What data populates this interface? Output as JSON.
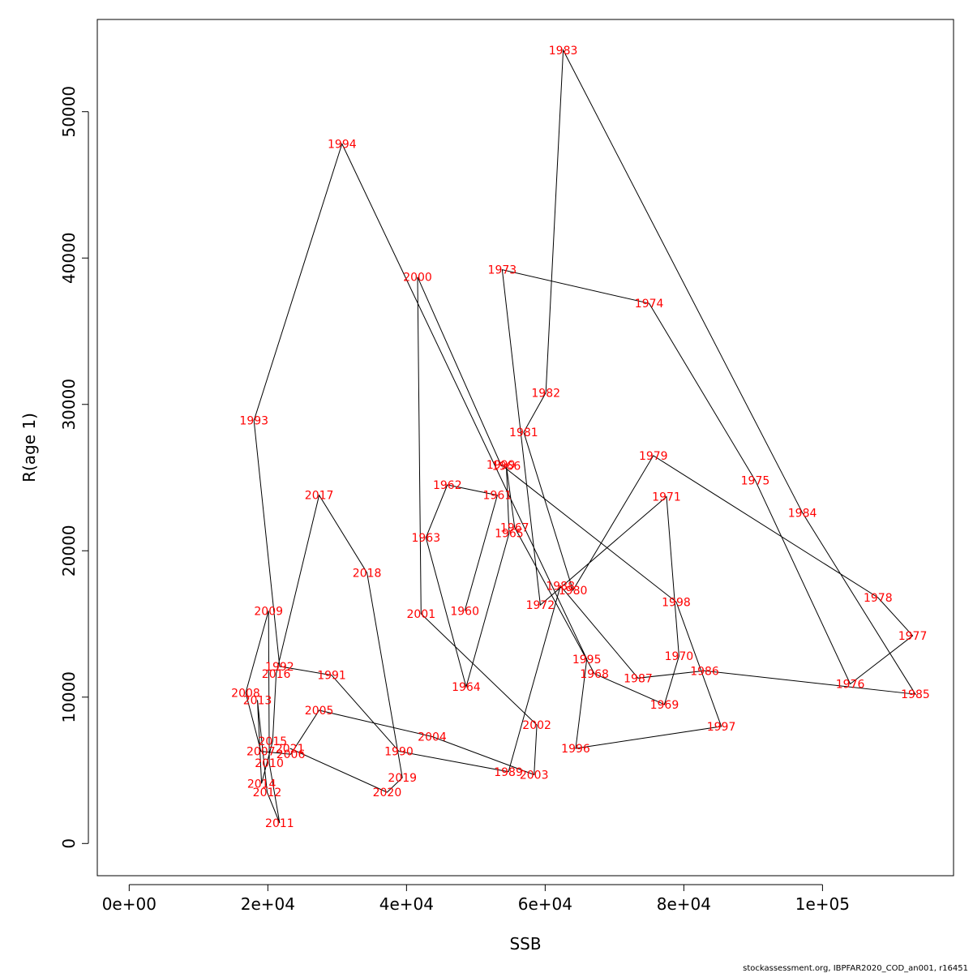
{
  "chart_data": {
    "type": "line",
    "title": "",
    "xlabel": "SSB",
    "ylabel": "R(age 1)",
    "xlim": [
      -4600,
      118900
    ],
    "ylim": [
      -2200,
      56300
    ],
    "grid": false,
    "x_ticks": [
      0,
      20000,
      40000,
      60000,
      80000,
      100000
    ],
    "x_tick_labels": [
      "0e+00",
      "2e+04",
      "4e+04",
      "6e+04",
      "8e+04",
      "1e+05"
    ],
    "y_ticks": [
      0,
      10000,
      20000,
      30000,
      40000,
      50000
    ],
    "y_tick_labels": [
      "0",
      "10000",
      "20000",
      "30000",
      "40000",
      "50000"
    ],
    "line_color": "#000000",
    "label_color": "#ff0000",
    "points": [
      {
        "year": "1960",
        "x": 48400,
        "y": 15900
      },
      {
        "year": "1961",
        "x": 53100,
        "y": 23800
      },
      {
        "year": "1962",
        "x": 45900,
        "y": 24500
      },
      {
        "year": "1963",
        "x": 42800,
        "y": 20900
      },
      {
        "year": "1964",
        "x": 48600,
        "y": 10700
      },
      {
        "year": "1965",
        "x": 54800,
        "y": 21200
      },
      {
        "year": "1966",
        "x": 54400,
        "y": 25800
      },
      {
        "year": "1967",
        "x": 55600,
        "y": 21600
      },
      {
        "year": "1968",
        "x": 67100,
        "y": 11600
      },
      {
        "year": "1969",
        "x": 77200,
        "y": 9500
      },
      {
        "year": "1970",
        "x": 79300,
        "y": 12800
      },
      {
        "year": "1971",
        "x": 77500,
        "y": 23700
      },
      {
        "year": "1972",
        "x": 59300,
        "y": 16300
      },
      {
        "year": "1973",
        "x": 53800,
        "y": 39200
      },
      {
        "year": "1974",
        "x": 75000,
        "y": 36900
      },
      {
        "year": "1975",
        "x": 90300,
        "y": 24800
      },
      {
        "year": "1976",
        "x": 104000,
        "y": 10900
      },
      {
        "year": "1977",
        "x": 113000,
        "y": 14200
      },
      {
        "year": "1978",
        "x": 108000,
        "y": 16800
      },
      {
        "year": "1979",
        "x": 75600,
        "y": 26500
      },
      {
        "year": "1980",
        "x": 64000,
        "y": 17300
      },
      {
        "year": "1981",
        "x": 56900,
        "y": 28100
      },
      {
        "year": "1982",
        "x": 60100,
        "y": 30800
      },
      {
        "year": "1983",
        "x": 62600,
        "y": 54200
      },
      {
        "year": "1984",
        "x": 97100,
        "y": 22600
      },
      {
        "year": "1985",
        "x": 113400,
        "y": 10200
      },
      {
        "year": "1986",
        "x": 83000,
        "y": 11800
      },
      {
        "year": "1987",
        "x": 73400,
        "y": 11300
      },
      {
        "year": "1988",
        "x": 62200,
        "y": 17600
      },
      {
        "year": "1989",
        "x": 54700,
        "y": 4900
      },
      {
        "year": "1990",
        "x": 38900,
        "y": 6300
      },
      {
        "year": "1991",
        "x": 29200,
        "y": 11500
      },
      {
        "year": "1992",
        "x": 21700,
        "y": 12100
      },
      {
        "year": "1993",
        "x": 18000,
        "y": 28900
      },
      {
        "year": "1994",
        "x": 30700,
        "y": 47800
      },
      {
        "year": "1995",
        "x": 66000,
        "y": 12600
      },
      {
        "year": "1996",
        "x": 64400,
        "y": 6500
      },
      {
        "year": "1997",
        "x": 85400,
        "y": 8000
      },
      {
        "year": "1998",
        "x": 78900,
        "y": 16500
      },
      {
        "year": "1999",
        "x": 53600,
        "y": 25900
      },
      {
        "year": "2000",
        "x": 41600,
        "y": 38700
      },
      {
        "year": "2001",
        "x": 42100,
        "y": 15700
      },
      {
        "year": "2002",
        "x": 58800,
        "y": 8100
      },
      {
        "year": "2003",
        "x": 58400,
        "y": 4700
      },
      {
        "year": "2004",
        "x": 43700,
        "y": 7300
      },
      {
        "year": "2005",
        "x": 27400,
        "y": 9100
      },
      {
        "year": "2006",
        "x": 23300,
        "y": 6100
      },
      {
        "year": "2007",
        "x": 19000,
        "y": 6300
      },
      {
        "year": "2008",
        "x": 16800,
        "y": 10300
      },
      {
        "year": "2009",
        "x": 20100,
        "y": 15900
      },
      {
        "year": "2010",
        "x": 20200,
        "y": 5500
      },
      {
        "year": "2011",
        "x": 21700,
        "y": 1400
      },
      {
        "year": "2012",
        "x": 19900,
        "y": 3500
      },
      {
        "year": "2013",
        "x": 18500,
        "y": 9800
      },
      {
        "year": "2014",
        "x": 19100,
        "y": 4100
      },
      {
        "year": "2015",
        "x": 20700,
        "y": 7000
      },
      {
        "year": "2016",
        "x": 21200,
        "y": 11600
      },
      {
        "year": "2017",
        "x": 27400,
        "y": 23800
      },
      {
        "year": "2018",
        "x": 34300,
        "y": 18500
      },
      {
        "year": "2019",
        "x": 39400,
        "y": 4500
      },
      {
        "year": "2020",
        "x": 37200,
        "y": 3500
      },
      {
        "year": "2021",
        "x": 23200,
        "y": 6500
      }
    ]
  },
  "footer": "stockassessment.org, IBPFAR2020_COD_an001, r16451"
}
